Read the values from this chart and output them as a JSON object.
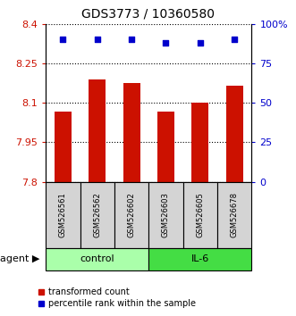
{
  "title": "GDS3773 / 10360580",
  "samples": [
    "GSM526561",
    "GSM526562",
    "GSM526602",
    "GSM526603",
    "GSM526605",
    "GSM526678"
  ],
  "bar_values": [
    8.065,
    8.19,
    8.175,
    8.065,
    8.101,
    8.165
  ],
  "percentile_values": [
    90,
    90,
    90,
    88,
    88,
    90
  ],
  "bar_color": "#cc1100",
  "percentile_color": "#0000cc",
  "ylim_left": [
    7.8,
    8.4
  ],
  "ylim_right": [
    0,
    100
  ],
  "yticks_left": [
    7.8,
    7.95,
    8.1,
    8.25,
    8.4
  ],
  "ytick_labels_left": [
    "7.8",
    "7.95",
    "8.1",
    "8.25",
    "8.4"
  ],
  "yticks_right": [
    0,
    25,
    50,
    75,
    100
  ],
  "ytick_labels_right": [
    "0",
    "25",
    "50",
    "75",
    "100%"
  ],
  "groups": [
    {
      "label": "control",
      "indices": [
        0,
        1,
        2
      ],
      "color": "#aaffaa"
    },
    {
      "label": "IL-6",
      "indices": [
        3,
        4,
        5
      ],
      "color": "#44dd44"
    }
  ],
  "legend_bar_label": "transformed count",
  "legend_pct_label": "percentile rank within the sample",
  "bar_width": 0.5,
  "sample_box_color": "#d4d4d4",
  "title_fontsize": 10
}
